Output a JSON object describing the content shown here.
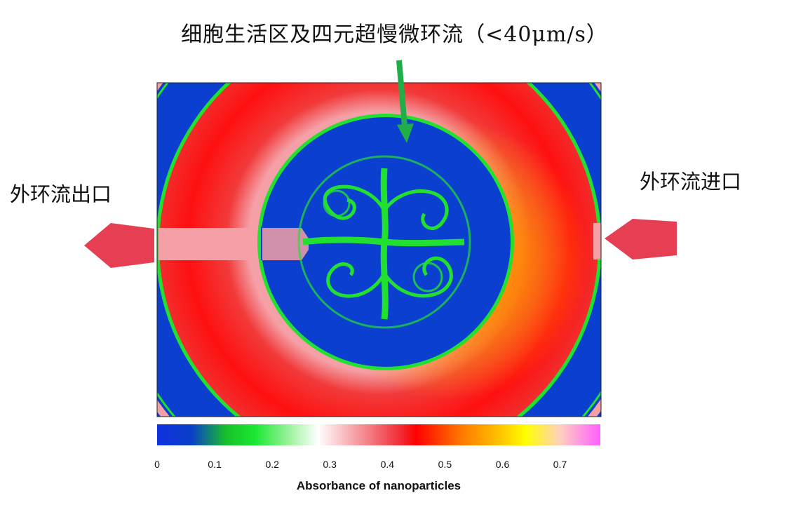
{
  "title": "细胞生活区及四元超慢微环流（<40μm/s）",
  "outlet_label": "外环流出口",
  "inlet_label": "外环流进口",
  "colorbar": {
    "title": "Absorbance of nanoparticles",
    "ticks": [
      "0",
      "0.1",
      "0.2",
      "0.3",
      "0.4",
      "0.5",
      "0.6",
      "0.7"
    ],
    "range": [
      0,
      0.77
    ],
    "stops": [
      {
        "value": 0.0,
        "color": "#1030e0"
      },
      {
        "value": 0.06,
        "color": "#0a3fc8"
      },
      {
        "value": 0.12,
        "color": "#18c02a"
      },
      {
        "value": 0.17,
        "color": "#1ae832"
      },
      {
        "value": 0.23,
        "color": "#9ef29e"
      },
      {
        "value": 0.28,
        "color": "#ffffff"
      },
      {
        "value": 0.34,
        "color": "#f6a7ad"
      },
      {
        "value": 0.42,
        "color": "#f0303a"
      },
      {
        "value": 0.45,
        "color": "#ff0000"
      },
      {
        "value": 0.53,
        "color": "#ff7a00"
      },
      {
        "value": 0.6,
        "color": "#ffc800"
      },
      {
        "value": 0.64,
        "color": "#ffff00"
      },
      {
        "value": 0.7,
        "color": "#ffd0c0"
      },
      {
        "value": 0.77,
        "color": "#ff60ff"
      }
    ]
  },
  "colors": {
    "blue": "#0b3fd0",
    "red": "#f12a2a",
    "pink": "#f49aa0",
    "green": "#22e030",
    "arrow_red": "#e63e52",
    "arrow_green": "#1fae48"
  }
}
